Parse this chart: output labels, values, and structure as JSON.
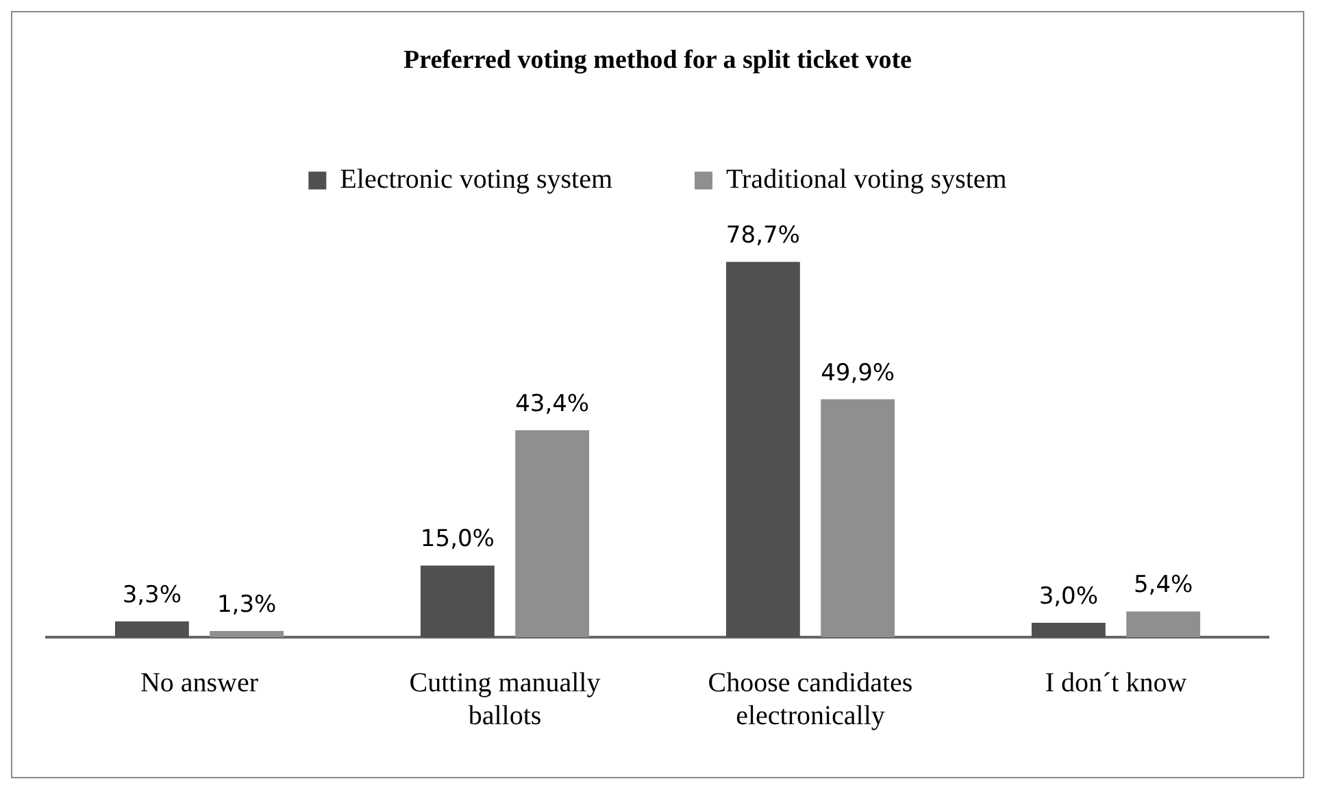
{
  "chart_data": {
    "type": "bar",
    "title": "Preferred voting method for a split ticket vote",
    "categories": [
      "No answer",
      "Cutting manually ballots",
      "Choose candidates electronically",
      "I don´t know"
    ],
    "series": [
      {
        "name": "Electronic voting system",
        "color": "#505050",
        "values": [
          3.3,
          15.0,
          78.7,
          3.0
        ],
        "value_labels": [
          "3,3%",
          "15,0%",
          "78,7%",
          "3,0%"
        ]
      },
      {
        "name": "Traditional voting system",
        "color": "#8f8f8f",
        "values": [
          1.3,
          43.4,
          49.9,
          5.4
        ],
        "value_labels": [
          "1,3%",
          "43,4%",
          "49,9%",
          "5,4%"
        ]
      }
    ],
    "legend": "top",
    "grid": false
  }
}
